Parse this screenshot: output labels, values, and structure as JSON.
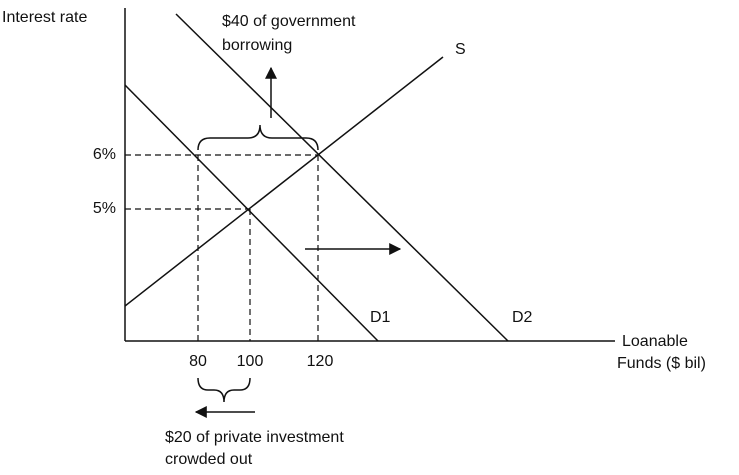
{
  "axes": {
    "y_label": "Interest rate",
    "x_label": [
      "Loanable",
      "Funds ($ bil)"
    ]
  },
  "y_ticks": [
    "6%",
    "5%"
  ],
  "x_ticks": [
    "80",
    "100",
    "120"
  ],
  "curves": {
    "supply": "S",
    "demand_1": "D1",
    "demand_2": "D2"
  },
  "annotations": {
    "government": [
      "$40 of government",
      "borrowing"
    ],
    "private": [
      "$20 of private investment",
      "crowded out"
    ]
  }
}
